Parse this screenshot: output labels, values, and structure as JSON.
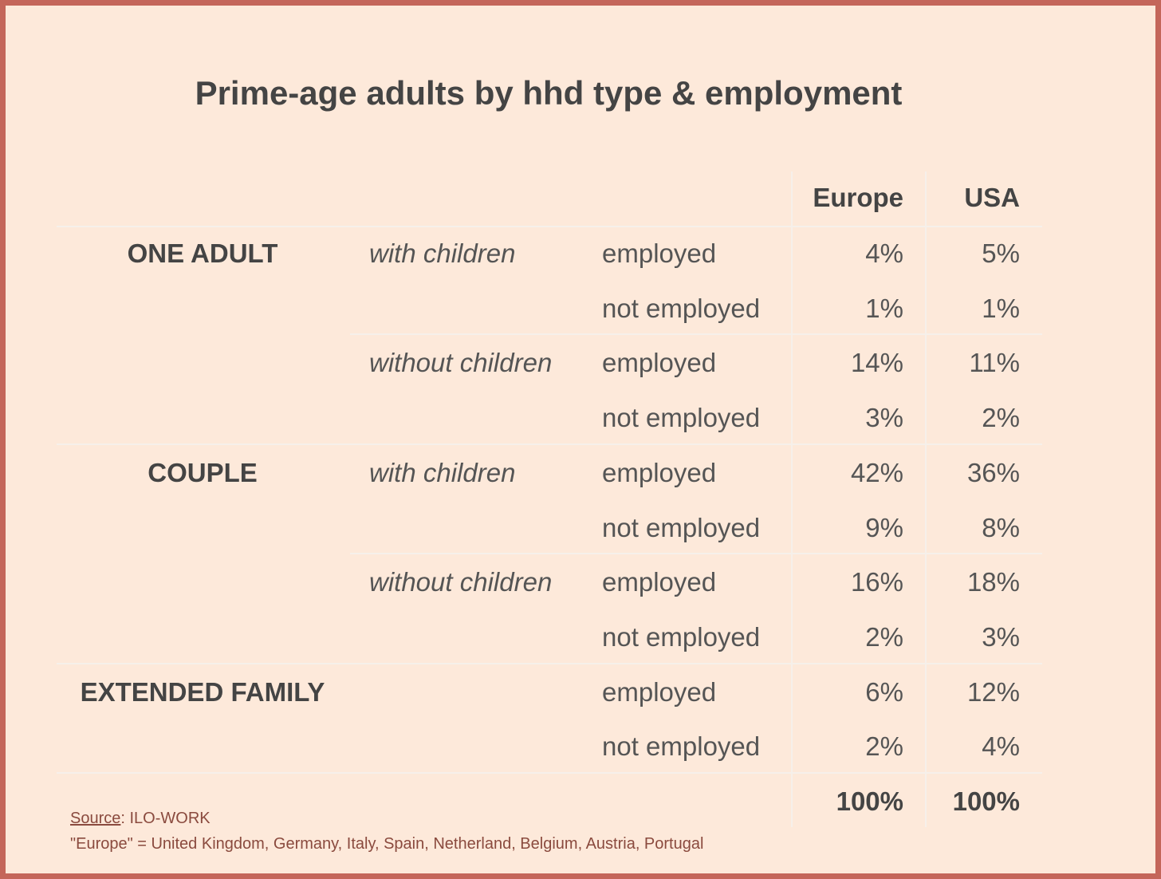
{
  "chart_data": {
    "type": "table",
    "title": "Prime-age adults by hhd type & employment",
    "columns": [
      "Europe",
      "USA"
    ],
    "rows": [
      {
        "group": "ONE ADULT",
        "children": "with children",
        "status": "employed",
        "values": [
          "4%",
          "5%"
        ]
      },
      {
        "group": "",
        "children": "",
        "status": "not employed",
        "values": [
          "1%",
          "1%"
        ]
      },
      {
        "group": "",
        "children": "without children",
        "status": "employed",
        "values": [
          "14%",
          "11%"
        ]
      },
      {
        "group": "",
        "children": "",
        "status": "not employed",
        "values": [
          "3%",
          "2%"
        ]
      },
      {
        "group": "COUPLE",
        "children": "with children",
        "status": "employed",
        "values": [
          "42%",
          "36%"
        ]
      },
      {
        "group": "",
        "children": "",
        "status": "not employed",
        "values": [
          "9%",
          "8%"
        ]
      },
      {
        "group": "",
        "children": "without children",
        "status": "employed",
        "values": [
          "16%",
          "18%"
        ]
      },
      {
        "group": "",
        "children": "",
        "status": "not employed",
        "values": [
          "2%",
          "3%"
        ]
      },
      {
        "group": "EXTENDED FAMILY",
        "children": "",
        "status": "employed",
        "values": [
          "6%",
          "12%"
        ]
      },
      {
        "group": "",
        "children": "",
        "status": "not employed",
        "values": [
          "2%",
          "4%"
        ]
      }
    ],
    "totals": [
      "100%",
      "100%"
    ]
  },
  "footer": {
    "source_label": "Source",
    "source_value": ": ILO-WORK",
    "note": "\"Europe\" = United Kingdom, Germany, Italy, Spain, Netherland, Belgium, Austria, Portugal"
  },
  "colors": {
    "background": "#fde9da",
    "border": "#c4665a",
    "text": "#555555",
    "source_text": "#8a4a3e"
  }
}
